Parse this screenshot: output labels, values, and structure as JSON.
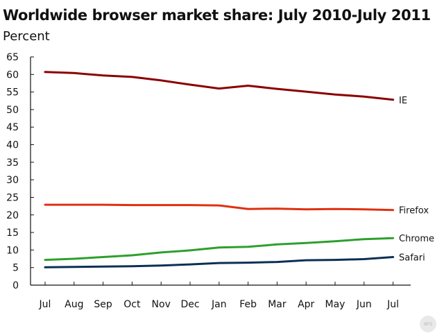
{
  "chart_data": {
    "type": "line",
    "title": "Worldwide browser market share: July 2010-July 2011",
    "subtitle": "Percent",
    "categories": [
      "Jul",
      "Aug",
      "Sep",
      "Oct",
      "Nov",
      "Dec",
      "Jan",
      "Feb",
      "Mar",
      "Apr",
      "May",
      "Jun",
      "Jul"
    ],
    "ylim": [
      0,
      65
    ],
    "yticks": [
      0,
      5,
      10,
      15,
      20,
      25,
      30,
      35,
      40,
      45,
      50,
      55,
      60,
      65
    ],
    "grid": false,
    "series": [
      {
        "name": "IE",
        "color": "#8b0000",
        "values": [
          60.7,
          60.4,
          59.7,
          59.3,
          58.3,
          57.1,
          56.0,
          56.8,
          55.9,
          55.1,
          54.3,
          53.7,
          52.8
        ]
      },
      {
        "name": "Firefox",
        "color": "#e03010",
        "values": [
          22.9,
          22.9,
          22.9,
          22.8,
          22.8,
          22.8,
          22.7,
          21.7,
          21.8,
          21.6,
          21.7,
          21.6,
          21.4
        ]
      },
      {
        "name": "Chrome",
        "color": "#2ca02c",
        "values": [
          7.2,
          7.5,
          8.0,
          8.5,
          9.3,
          9.9,
          10.7,
          10.9,
          11.6,
          12.0,
          12.5,
          13.1,
          13.4
        ]
      },
      {
        "name": "Safari",
        "color": "#0b2f55",
        "values": [
          5.1,
          5.2,
          5.3,
          5.4,
          5.6,
          5.9,
          6.3,
          6.4,
          6.6,
          7.1,
          7.2,
          7.4,
          8.0
        ]
      }
    ]
  },
  "watermark": "ars"
}
